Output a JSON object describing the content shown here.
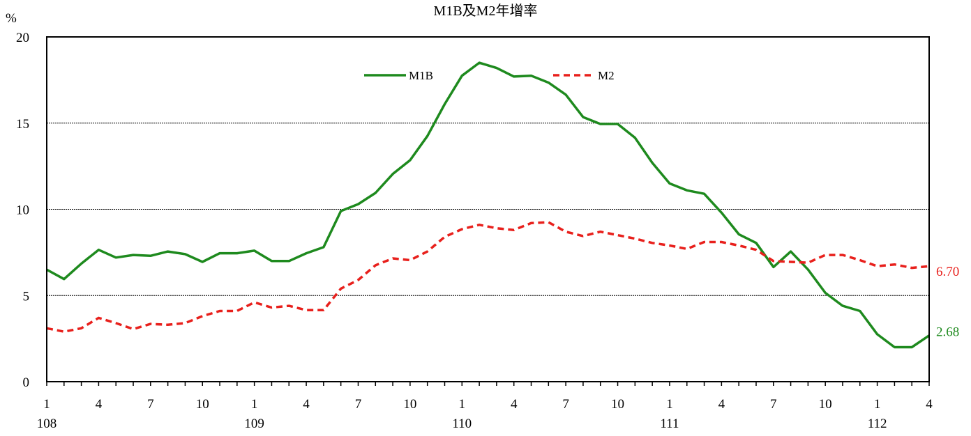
{
  "chart_data": {
    "type": "line",
    "title": "M1B及M2年增率",
    "ylabel": "%",
    "ylim": [
      0,
      20
    ],
    "yticks": [
      0,
      5,
      10,
      15,
      20
    ],
    "grid": true,
    "legend_position": "top-center",
    "x_tick_labels": [
      "1",
      "4",
      "7",
      "10",
      "1",
      "4",
      "7",
      "10",
      "1",
      "4",
      "7",
      "10",
      "1",
      "4",
      "7",
      "10",
      "1",
      "4"
    ],
    "year_labels": [
      {
        "label": "108",
        "month_index": 0
      },
      {
        "label": "109",
        "month_index": 12
      },
      {
        "label": "110",
        "month_index": 24
      },
      {
        "label": "111",
        "month_index": 36
      },
      {
        "label": "112",
        "month_index": 48
      }
    ],
    "series": [
      {
        "name": "M1B",
        "color": "#1e8a1e",
        "style": "solid",
        "end_label": "2.68",
        "values": [
          6.5,
          5.95,
          6.85,
          7.65,
          7.2,
          7.35,
          7.3,
          7.55,
          7.4,
          6.95,
          7.45,
          7.45,
          7.6,
          7.0,
          7.0,
          7.45,
          7.8,
          9.9,
          10.3,
          10.95,
          12.05,
          12.85,
          14.25,
          16.1,
          17.75,
          18.5,
          18.2,
          17.7,
          17.75,
          17.35,
          16.65,
          15.35,
          14.95,
          14.95,
          14.15,
          12.7,
          11.5,
          11.1,
          10.9,
          9.8,
          8.55,
          8.05,
          6.65,
          7.55,
          6.5,
          5.15,
          4.4,
          4.1,
          2.75,
          2.0,
          2.0,
          2.68
        ]
      },
      {
        "name": "M2",
        "color": "#e8201c",
        "style": "dashed",
        "end_label": "6.70",
        "values": [
          3.1,
          2.9,
          3.1,
          3.7,
          3.4,
          3.05,
          3.35,
          3.3,
          3.4,
          3.8,
          4.1,
          4.1,
          4.6,
          4.3,
          4.4,
          4.15,
          4.15,
          5.4,
          5.9,
          6.75,
          7.15,
          7.05,
          7.55,
          8.4,
          8.85,
          9.1,
          8.9,
          8.8,
          9.2,
          9.25,
          8.7,
          8.45,
          8.7,
          8.5,
          8.3,
          8.05,
          7.9,
          7.7,
          8.1,
          8.1,
          7.9,
          7.65,
          7.0,
          6.95,
          6.9,
          7.35,
          7.35,
          7.05,
          6.7,
          6.8,
          6.6,
          6.7
        ]
      }
    ]
  }
}
